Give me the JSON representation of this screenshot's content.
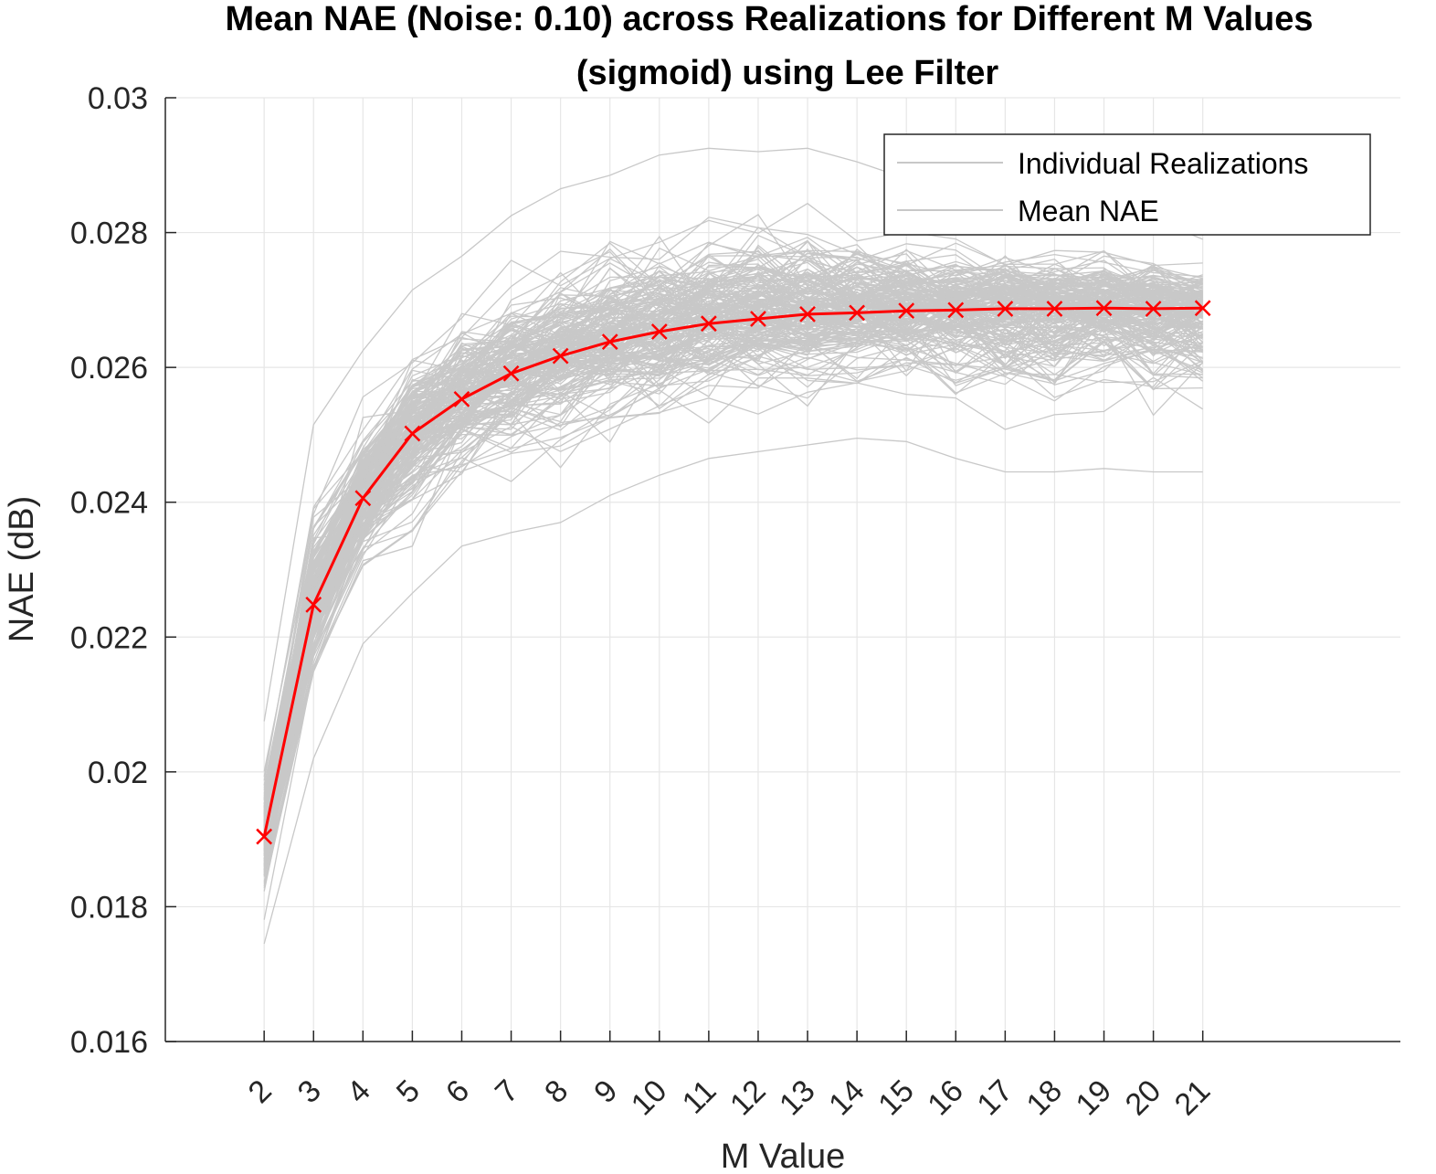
{
  "chart_data": {
    "type": "line",
    "title": "Mean NAE (Noise: 0.10) across Realizations for Different M Values",
    "subtitle": "(sigmoid) using Lee Filter",
    "xlabel": "M Value",
    "ylabel": "NAE (dB)",
    "x": [
      2,
      3,
      4,
      5,
      6,
      7,
      8,
      9,
      10,
      11,
      12,
      13,
      14,
      15,
      16,
      17,
      18,
      19,
      20,
      21
    ],
    "xticklabels": [
      "2",
      "3",
      "4",
      "5",
      "6",
      "7",
      "8",
      "9",
      "10",
      "11",
      "12",
      "13",
      "14",
      "15",
      "16",
      "17",
      "18",
      "19",
      "20",
      "21"
    ],
    "xlim": [
      0,
      25
    ],
    "ylim": [
      0.016,
      0.03
    ],
    "yticks": [
      0.016,
      0.018,
      0.02,
      0.022,
      0.024,
      0.026,
      0.028,
      0.03
    ],
    "yticklabels": [
      "0.016",
      "0.018",
      "0.02",
      "0.022",
      "0.024",
      "0.026",
      "0.028",
      "0.03"
    ],
    "grid": true,
    "legend": {
      "placement": "top-right",
      "entries": [
        "Individual Realizations",
        "Mean NAE"
      ]
    },
    "series": [
      {
        "name": "Mean NAE",
        "color": "#ff0000",
        "marker": "x",
        "values": [
          0.01904,
          0.02248,
          0.02406,
          0.02502,
          0.02553,
          0.02591,
          0.02617,
          0.02638,
          0.02653,
          0.02665,
          0.02672,
          0.02679,
          0.02681,
          0.02684,
          0.02685,
          0.02687,
          0.02687,
          0.02688,
          0.02687,
          0.02688
        ]
      }
    ],
    "realizations": {
      "name": "Individual Realizations",
      "color": "#c8c8c8",
      "envelope_max": [
        0.02075,
        0.02515,
        0.02625,
        0.02715,
        0.02765,
        0.02825,
        0.02865,
        0.02885,
        0.02915,
        0.02925,
        0.0292,
        0.02925,
        0.02905,
        0.0288,
        0.02865,
        0.02855,
        0.02845,
        0.0284,
        0.0282,
        0.0279
      ],
      "envelope_min": [
        0.01745,
        0.0202,
        0.0219,
        0.02265,
        0.02335,
        0.02355,
        0.0237,
        0.0241,
        0.0244,
        0.02465,
        0.02475,
        0.02485,
        0.02495,
        0.0249,
        0.02465,
        0.02445,
        0.02445,
        0.0245,
        0.02445,
        0.02445
      ]
    }
  }
}
